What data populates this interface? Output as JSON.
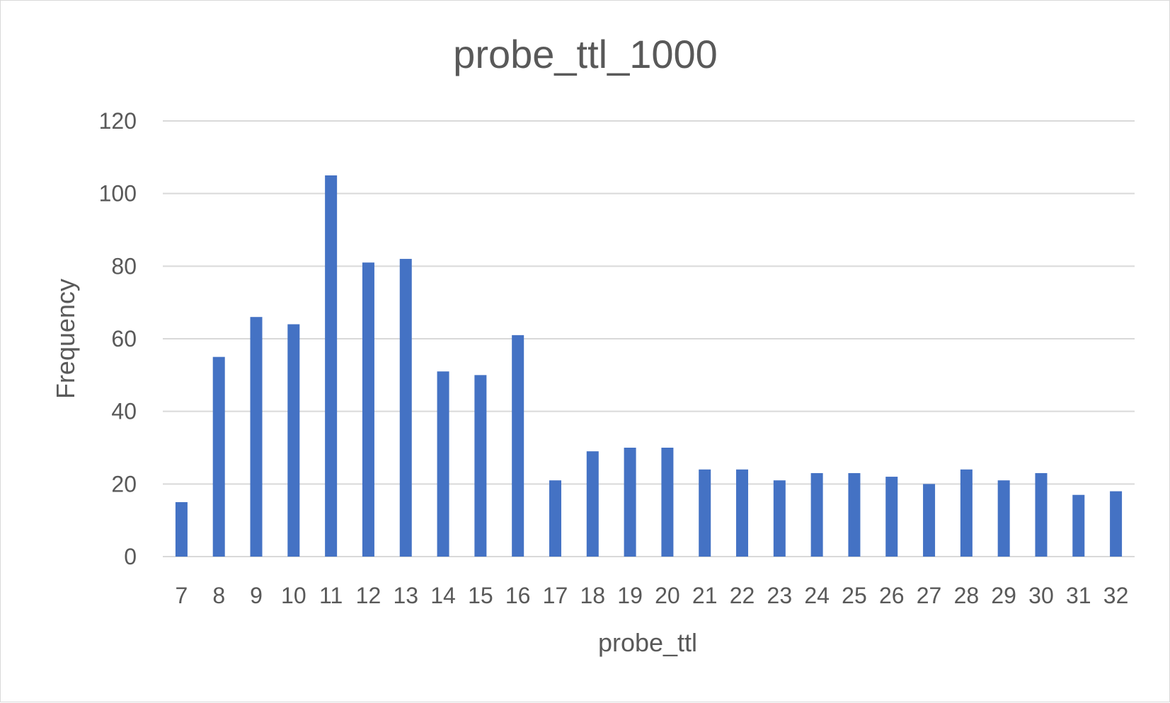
{
  "chart_data": {
    "type": "bar",
    "title": "probe_ttl_1000",
    "xlabel": "probe_ttl",
    "ylabel": "Frequency",
    "categories": [
      "7",
      "8",
      "9",
      "10",
      "11",
      "12",
      "13",
      "14",
      "15",
      "16",
      "17",
      "18",
      "19",
      "20",
      "21",
      "22",
      "23",
      "24",
      "25",
      "26",
      "27",
      "28",
      "29",
      "30",
      "31",
      "32"
    ],
    "series": [
      {
        "name": "Frequency",
        "values": [
          15,
          55,
          66,
          64,
          105,
          81,
          82,
          51,
          50,
          61,
          21,
          29,
          30,
          30,
          24,
          24,
          21,
          23,
          23,
          22,
          20,
          24,
          21,
          23,
          17,
          18
        ]
      }
    ],
    "ylim": [
      0,
      120
    ],
    "yticks": [
      "0",
      "20",
      "40",
      "60",
      "80",
      "100",
      "120"
    ],
    "grid": true,
    "legend": "none",
    "colors": {
      "bar": "#4472c4",
      "grid": "#d9d9d9",
      "text": "#595959"
    }
  }
}
